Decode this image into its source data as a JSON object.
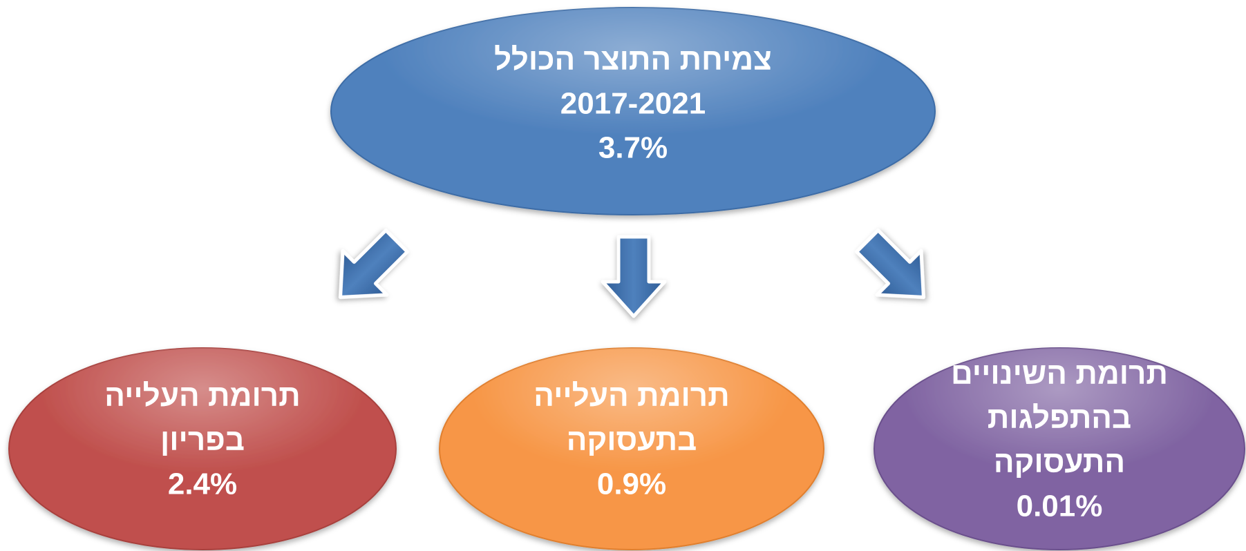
{
  "nodes": [
    {
      "lines": [
        "צמיחת התוצר הכולל",
        "2017-2021",
        "3.7%"
      ]
    },
    {
      "lines": [
        "תרומת העלייה",
        "בפריון",
        "2.4%"
      ]
    },
    {
      "lines": [
        "תרומת העלייה",
        "בתעסוקה",
        "0.9%"
      ]
    },
    {
      "lines": [
        "תרומת השינויים",
        "בהתפלגות",
        "התעסוקה",
        "0.01%"
      ]
    }
  ]
}
